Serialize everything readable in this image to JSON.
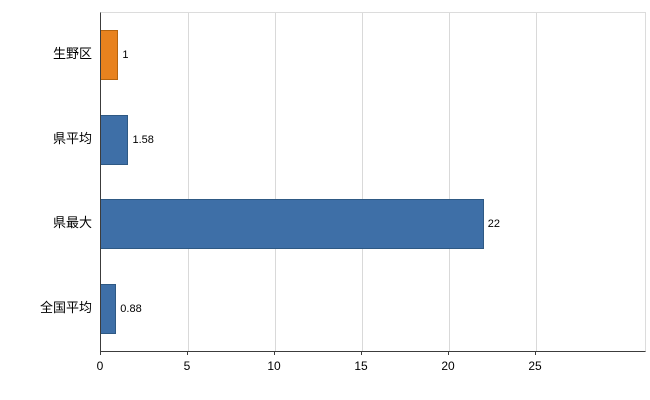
{
  "chart_data": {
    "type": "bar",
    "orientation": "horizontal",
    "title": "",
    "xlabel": "",
    "ylabel": "",
    "categories": [
      "生野区",
      "県平均",
      "県最大",
      "全国平均"
    ],
    "values": [
      1,
      1.58,
      22,
      0.88
    ],
    "value_labels": [
      "1",
      "1.58",
      "22",
      "0.88"
    ],
    "bar_colors": [
      "#e8821e",
      "#3e6fa7",
      "#3e6fa7",
      "#3e6fa7"
    ],
    "bar_border_colors": [
      "#b5640f",
      "#2e5984",
      "#2e5984",
      "#2e5984"
    ],
    "xlim": [
      0,
      25
    ],
    "x_ticks": [
      0,
      5,
      10,
      15,
      20,
      25
    ],
    "x_tick_labels": [
      "0",
      "5",
      "10",
      "15",
      "20",
      "25"
    ],
    "grid": true,
    "legend": "none",
    "colors": {
      "background": "#ffffff",
      "gridline": "#d9d9d9",
      "axis": "#3c3c3c",
      "accent_orange": "#e8821e",
      "accent_blue": "#3e6fa7"
    }
  }
}
